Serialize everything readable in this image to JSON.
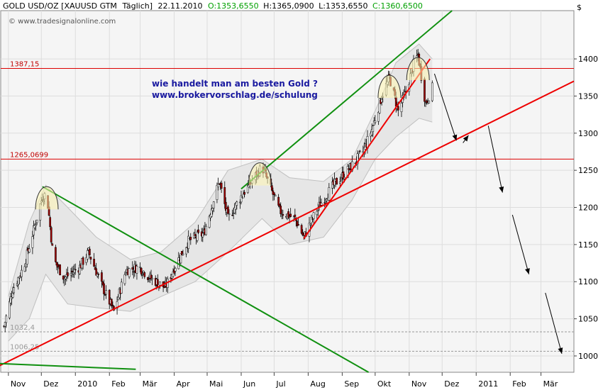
{
  "header": {
    "symbol": "GOLD USD/OZ [XAUUSD GTM",
    "interval": "Täglich]",
    "date": "22.11.2010",
    "open": "O:1353,6550",
    "high": "H:1365,0900",
    "low": "L:1353,6550",
    "close": "C:1360,6500",
    "currency": "$",
    "watermark": "© www.tradesignalonline.com"
  },
  "annotation": {
    "line1": "wie handelt man am besten Gold ?",
    "line2": "www.brokervorschlag.de/schulung"
  },
  "levels": [
    {
      "value": 1387.15,
      "label": "1387,15",
      "color": "#dd0000"
    },
    {
      "value": 1265.0699,
      "label": "1265,0699",
      "color": "#dd0000"
    },
    {
      "value": 1032.4,
      "label": "1032,4",
      "color": "#999999"
    },
    {
      "value": 1006.25,
      "label": "1006,25",
      "color": "#999999"
    }
  ],
  "colors": {
    "up_candle": "#ffffff",
    "down_candle": "#a00000",
    "trend_red": "#ee0000",
    "trend_green": "#109010",
    "bollinger": "#c0c0c0"
  },
  "chart_data": {
    "type": "candlestick",
    "title": "GOLD USD/OZ [XAUUSD GTM Täglich]",
    "ylabel": "$",
    "ylim": [
      978,
      1465
    ],
    "yticks": [
      1000,
      1050,
      1100,
      1150,
      1200,
      1250,
      1300,
      1350,
      1400
    ],
    "ytick_labels": [
      "1000",
      "1050",
      "1100",
      "1150",
      "1200",
      "1250",
      "1300",
      "1350",
      "1400"
    ],
    "xticks": [
      {
        "date": "2009-11-01",
        "label": "Nov"
      },
      {
        "date": "2009-12-01",
        "label": "Dez"
      },
      {
        "date": "2010-01-01",
        "label": "2010"
      },
      {
        "date": "2010-02-01",
        "label": "Feb"
      },
      {
        "date": "2010-03-01",
        "label": "Mär"
      },
      {
        "date": "2010-04-01",
        "label": "Apr"
      },
      {
        "date": "2010-05-01",
        "label": "Mai"
      },
      {
        "date": "2010-06-01",
        "label": "Jun"
      },
      {
        "date": "2010-07-01",
        "label": "Jul"
      },
      {
        "date": "2010-08-01",
        "label": "Aug"
      },
      {
        "date": "2010-09-01",
        "label": "Sep"
      },
      {
        "date": "2010-10-01",
        "label": "Okt"
      },
      {
        "date": "2010-11-01",
        "label": "Nov"
      },
      {
        "date": "2010-12-01",
        "label": "Dez"
      },
      {
        "date": "2011-01-01",
        "label": "2011"
      },
      {
        "date": "2011-02-01",
        "label": "Feb"
      },
      {
        "date": "2011-03-01",
        "label": "Mär"
      }
    ],
    "price_path": [
      {
        "date": "2009-10-28",
        "close": 1040
      },
      {
        "date": "2009-11-05",
        "close": 1090
      },
      {
        "date": "2009-11-15",
        "close": 1120
      },
      {
        "date": "2009-11-25",
        "close": 1175
      },
      {
        "date": "2009-12-02",
        "close": 1215
      },
      {
        "date": "2009-12-06",
        "close": 1218
      },
      {
        "date": "2009-12-12",
        "close": 1130
      },
      {
        "date": "2009-12-22",
        "close": 1105
      },
      {
        "date": "2010-01-05",
        "close": 1120
      },
      {
        "date": "2010-01-13",
        "close": 1140
      },
      {
        "date": "2010-01-25",
        "close": 1095
      },
      {
        "date": "2010-02-05",
        "close": 1060
      },
      {
        "date": "2010-02-16",
        "close": 1115
      },
      {
        "date": "2010-02-28",
        "close": 1120
      },
      {
        "date": "2010-03-10",
        "close": 1105
      },
      {
        "date": "2010-03-24",
        "close": 1092
      },
      {
        "date": "2010-04-03",
        "close": 1125
      },
      {
        "date": "2010-04-14",
        "close": 1155
      },
      {
        "date": "2010-04-28",
        "close": 1165
      },
      {
        "date": "2010-05-12",
        "close": 1235
      },
      {
        "date": "2010-05-20",
        "close": 1185
      },
      {
        "date": "2010-06-01",
        "close": 1215
      },
      {
        "date": "2010-06-20",
        "close": 1255
      },
      {
        "date": "2010-07-06",
        "close": 1195
      },
      {
        "date": "2010-07-20",
        "close": 1185
      },
      {
        "date": "2010-07-28",
        "close": 1160
      },
      {
        "date": "2010-08-10",
        "close": 1200
      },
      {
        "date": "2010-08-24",
        "close": 1230
      },
      {
        "date": "2010-09-06",
        "close": 1250
      },
      {
        "date": "2010-09-20",
        "close": 1275
      },
      {
        "date": "2010-09-28",
        "close": 1305
      },
      {
        "date": "2010-10-07",
        "close": 1350
      },
      {
        "date": "2010-10-14",
        "close": 1375
      },
      {
        "date": "2010-10-22",
        "close": 1330
      },
      {
        "date": "2010-10-29",
        "close": 1355
      },
      {
        "date": "2010-11-05",
        "close": 1393
      },
      {
        "date": "2010-11-09",
        "close": 1405
      },
      {
        "date": "2010-11-16",
        "close": 1340
      },
      {
        "date": "2010-11-22",
        "close": 1361
      }
    ],
    "bollinger": {
      "upper": [
        {
          "date": "2009-11-01",
          "value": 1080
        },
        {
          "date": "2009-11-20",
          "value": 1180
        },
        {
          "date": "2009-12-05",
          "value": 1230
        },
        {
          "date": "2009-12-25",
          "value": 1200
        },
        {
          "date": "2010-01-20",
          "value": 1160
        },
        {
          "date": "2010-02-20",
          "value": 1130
        },
        {
          "date": "2010-03-20",
          "value": 1140
        },
        {
          "date": "2010-04-20",
          "value": 1180
        },
        {
          "date": "2010-05-20",
          "value": 1250
        },
        {
          "date": "2010-06-20",
          "value": 1265
        },
        {
          "date": "2010-07-15",
          "value": 1240
        },
        {
          "date": "2010-08-15",
          "value": 1235
        },
        {
          "date": "2010-09-10",
          "value": 1265
        },
        {
          "date": "2010-10-01",
          "value": 1330
        },
        {
          "date": "2010-10-20",
          "value": 1395
        },
        {
          "date": "2010-11-10",
          "value": 1420
        },
        {
          "date": "2010-11-22",
          "value": 1400
        }
      ],
      "lower": [
        {
          "date": "2009-11-01",
          "value": 1020
        },
        {
          "date": "2009-11-20",
          "value": 1050
        },
        {
          "date": "2009-12-05",
          "value": 1110
        },
        {
          "date": "2009-12-25",
          "value": 1070
        },
        {
          "date": "2010-01-20",
          "value": 1065
        },
        {
          "date": "2010-02-20",
          "value": 1060
        },
        {
          "date": "2010-03-20",
          "value": 1080
        },
        {
          "date": "2010-04-20",
          "value": 1100
        },
        {
          "date": "2010-05-20",
          "value": 1140
        },
        {
          "date": "2010-06-20",
          "value": 1185
        },
        {
          "date": "2010-07-15",
          "value": 1150
        },
        {
          "date": "2010-08-15",
          "value": 1160
        },
        {
          "date": "2010-09-10",
          "value": 1210
        },
        {
          "date": "2010-10-01",
          "value": 1265
        },
        {
          "date": "2010-10-20",
          "value": 1295
        },
        {
          "date": "2010-11-10",
          "value": 1320
        },
        {
          "date": "2010-11-22",
          "value": 1315
        }
      ]
    },
    "trend_lines": [
      {
        "color": "red",
        "points": [
          {
            "date": "2009-10-20",
            "value": 984
          },
          {
            "date": "2011-03-31",
            "value": 1370
          }
        ]
      },
      {
        "color": "red",
        "points": [
          {
            "date": "2010-07-28",
            "value": 1158
          },
          {
            "date": "2010-11-20",
            "value": 1400
          }
        ]
      },
      {
        "color": "green",
        "points": [
          {
            "date": "2010-06-01",
            "value": 1225
          },
          {
            "date": "2010-12-10",
            "value": 1465
          }
        ]
      },
      {
        "color": "green",
        "points": [
          {
            "date": "2009-12-02",
            "value": 1228
          },
          {
            "date": "2010-09-25",
            "value": 978
          }
        ]
      },
      {
        "color": "green",
        "points": [
          {
            "date": "2009-10-20",
            "value": 990
          },
          {
            "date": "2010-02-25",
            "value": 982
          }
        ]
      }
    ],
    "top_arcs": [
      {
        "date": "2009-12-06",
        "value": 1228
      },
      {
        "date": "2010-06-18",
        "value": 1260
      },
      {
        "date": "2010-10-14",
        "value": 1378
      },
      {
        "date": "2010-11-09",
        "value": 1402
      }
    ],
    "arrows": [
      {
        "from": {
          "date": "2010-11-24",
          "value": 1380
        },
        "to": {
          "date": "2010-12-14",
          "value": 1290
        }
      },
      {
        "from": {
          "date": "2010-12-20",
          "value": 1287
        },
        "to": {
          "date": "2010-12-25",
          "value": 1297
        }
      },
      {
        "from": {
          "date": "2011-01-12",
          "value": 1310
        },
        "to": {
          "date": "2011-01-25",
          "value": 1220
        }
      },
      {
        "from": {
          "date": "2011-02-03",
          "value": 1190
        },
        "to": {
          "date": "2011-02-18",
          "value": 1110
        }
      },
      {
        "from": {
          "date": "2011-03-05",
          "value": 1085
        },
        "to": {
          "date": "2011-03-20",
          "value": 1003
        }
      }
    ]
  }
}
